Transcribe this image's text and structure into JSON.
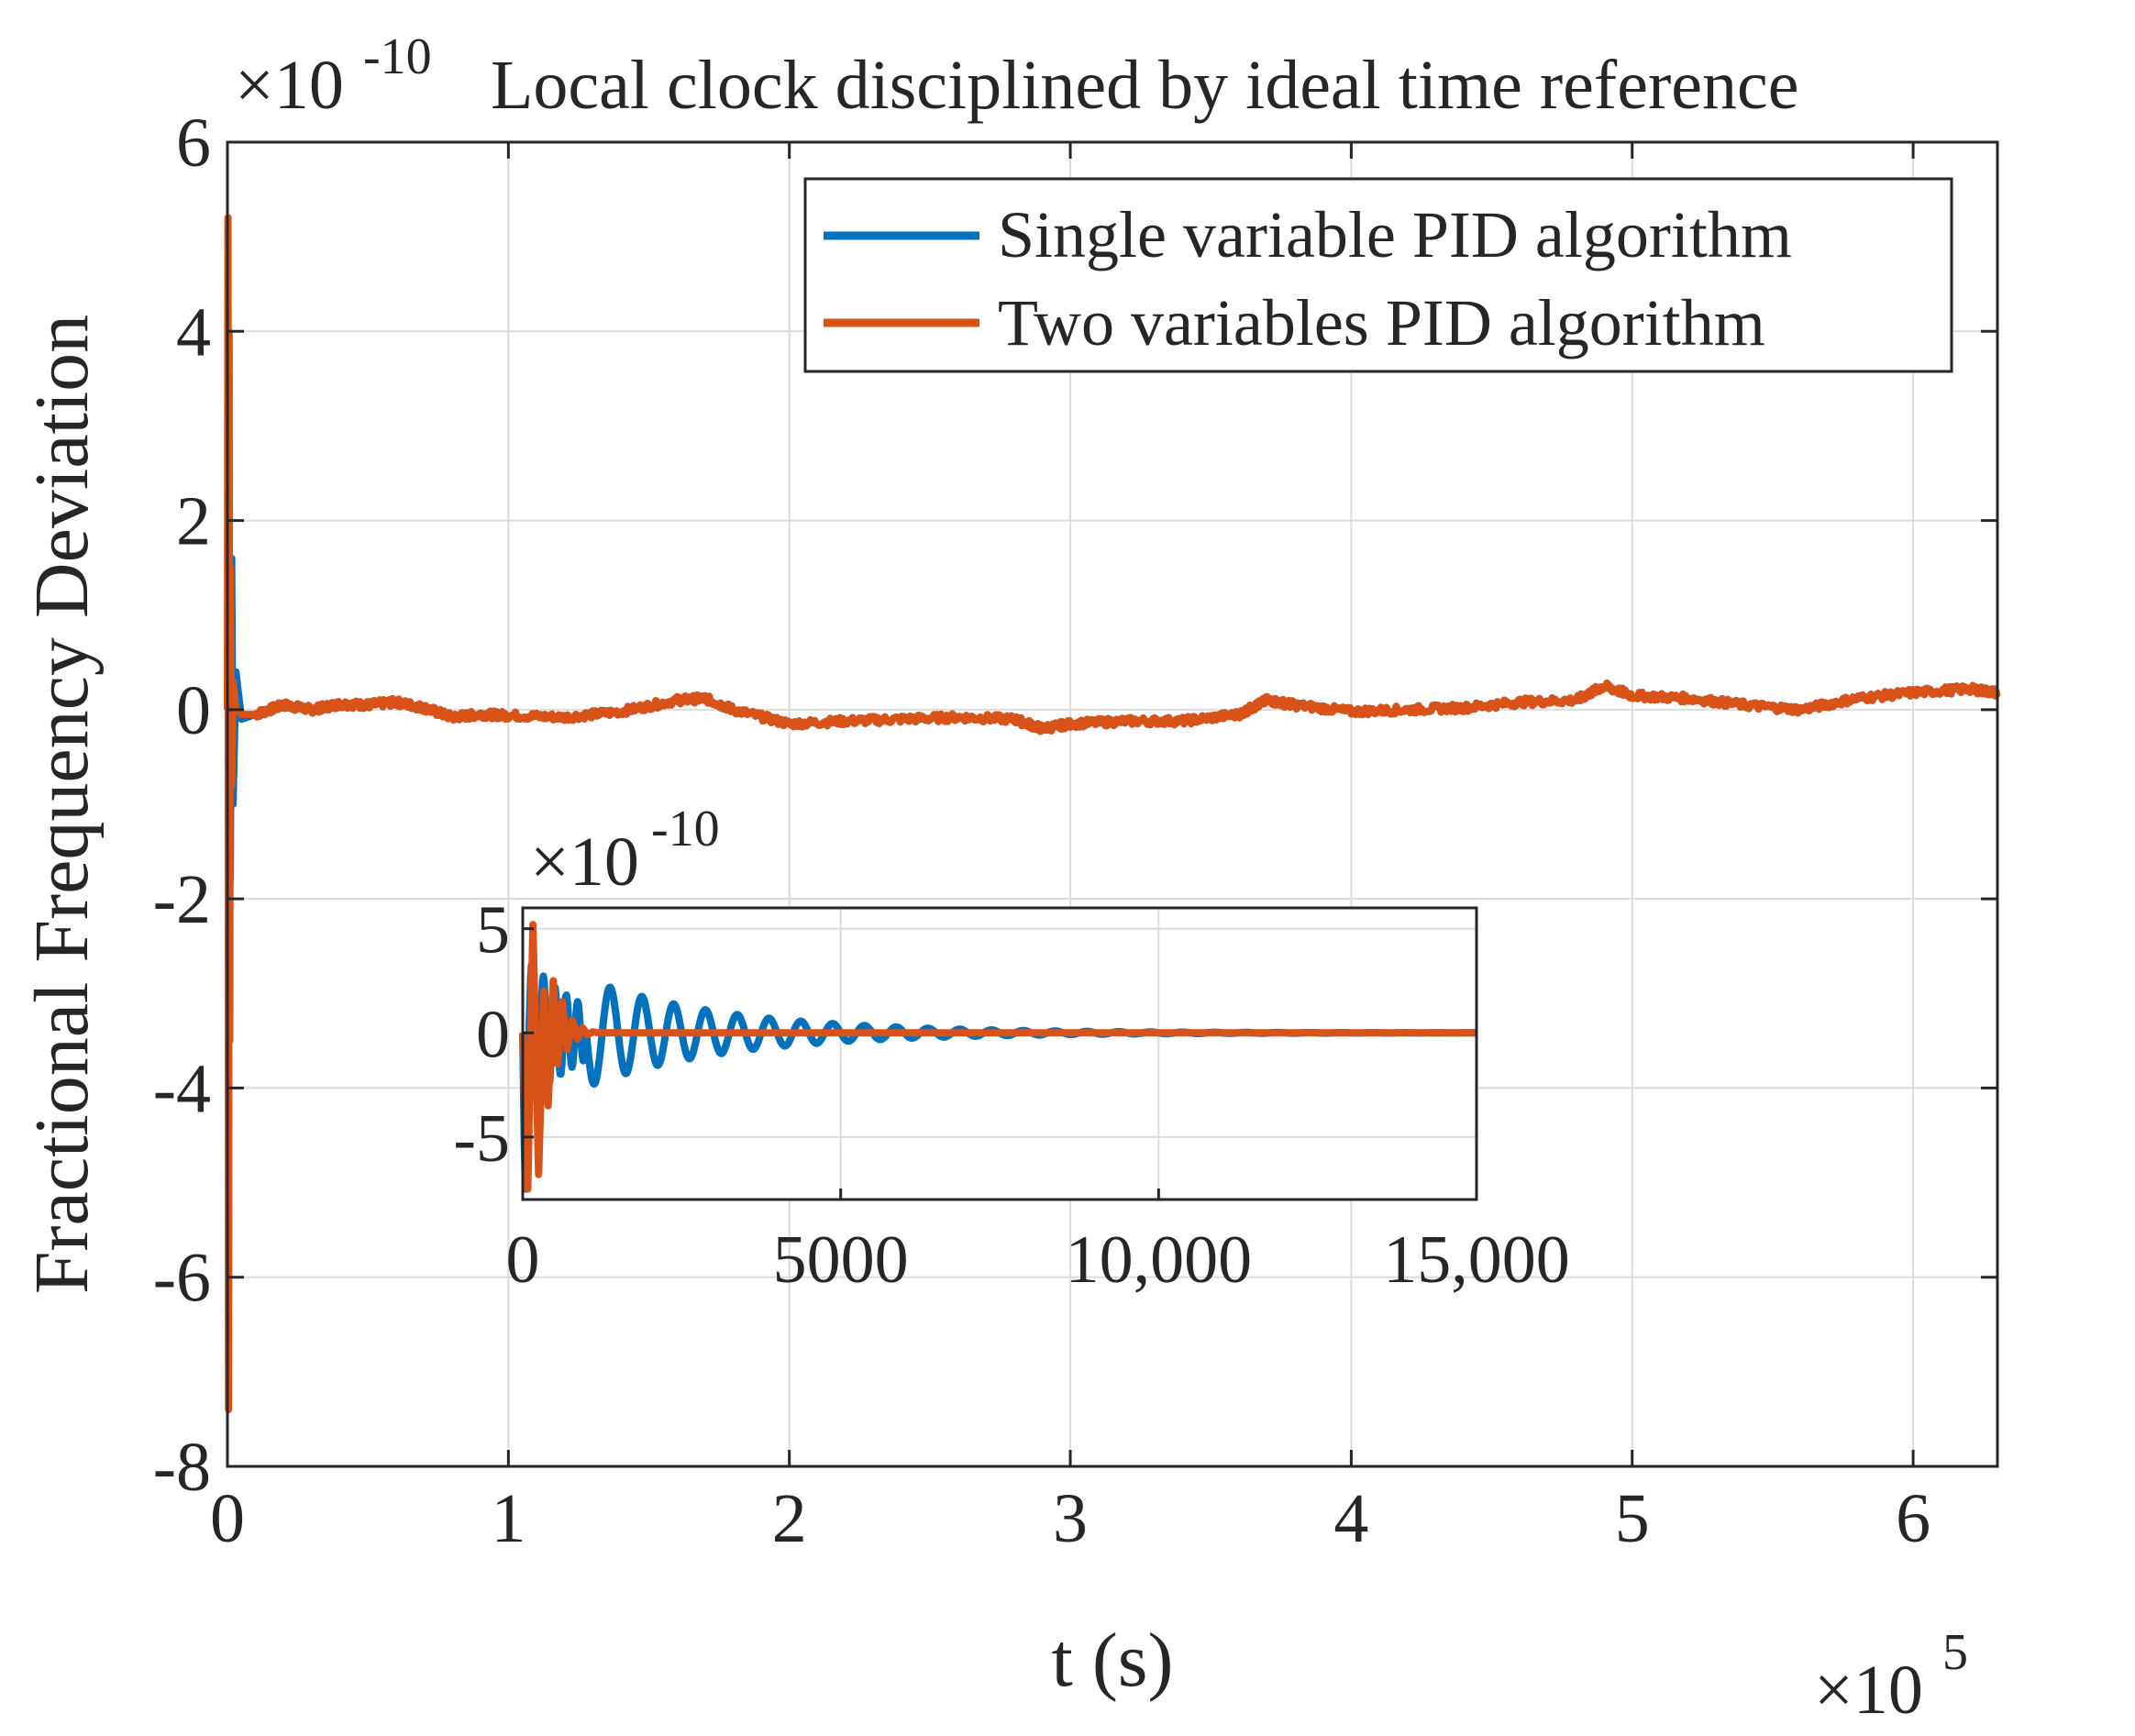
{
  "chart_data": {
    "type": "line",
    "title": "Local clock disciplined by ideal time reference",
    "xlabel": "t (s)",
    "ylabel": "Fractional Frequency Deviation",
    "y_exponent_label": "×10",
    "y_exponent_power": "-10",
    "x_exponent_label": "×10",
    "x_exponent_power": "5",
    "xlim": [
      0,
      6.3
    ],
    "ylim": [
      -8,
      6
    ],
    "xticks": [
      0,
      1,
      2,
      3,
      4,
      5,
      6
    ],
    "yticks": [
      -8,
      -6,
      -4,
      -2,
      0,
      2,
      4,
      6
    ],
    "xtick_labels": [
      "0",
      "1",
      "2",
      "3",
      "4",
      "5",
      "6"
    ],
    "ytick_labels": [
      "-8",
      "-6",
      "-4",
      "-2",
      "0",
      "2",
      "4",
      "6"
    ],
    "grid": true,
    "legend_position": "top-right",
    "series": [
      {
        "name": "Single variable PID algorithm",
        "color": "#0072BD",
        "x": [
          0,
          0.005,
          0.01,
          0.015,
          0.02,
          0.03,
          0.05,
          0.1,
          0.2,
          0.3,
          0.4,
          0.5,
          0.6,
          0.7,
          0.8,
          0.9,
          1.0,
          1.2,
          1.4,
          1.6,
          1.7,
          1.8,
          2.0,
          2.2,
          2.4,
          2.6,
          2.8,
          2.9,
          3.0,
          3.2,
          3.4,
          3.6,
          3.7,
          3.8,
          4.0,
          4.2,
          4.4,
          4.6,
          4.8,
          4.9,
          5.0,
          5.2,
          5.4,
          5.6,
          5.8,
          6.0,
          6.2,
          6.3
        ],
        "values": [
          0,
          2.5,
          -1.8,
          1.6,
          -1.0,
          0.4,
          -0.1,
          -0.05,
          0.05,
          0.0,
          0.06,
          0.05,
          0.08,
          0.02,
          -0.08,
          -0.05,
          -0.06,
          -0.08,
          -0.02,
          0.1,
          0.12,
          0.0,
          -0.15,
          -0.12,
          -0.1,
          -0.08,
          -0.1,
          -0.2,
          -0.15,
          -0.12,
          -0.12,
          -0.05,
          0.1,
          0.05,
          -0.02,
          0.0,
          0.02,
          0.08,
          0.1,
          0.25,
          0.15,
          0.12,
          0.05,
          0.0,
          0.12,
          0.18,
          0.22,
          0.18
        ]
      },
      {
        "name": "Two variables PID algorithm",
        "color": "#D95319",
        "x": [
          0,
          0.002,
          0.004,
          0.006,
          0.008,
          0.01,
          0.015,
          0.02,
          0.03,
          0.05,
          0.1,
          0.2,
          0.3,
          0.4,
          0.5,
          0.6,
          0.7,
          0.8,
          0.9,
          1.0,
          1.2,
          1.4,
          1.6,
          1.7,
          1.8,
          2.0,
          2.2,
          2.4,
          2.6,
          2.8,
          2.9,
          3.0,
          3.2,
          3.4,
          3.6,
          3.7,
          3.8,
          4.0,
          4.2,
          4.4,
          4.6,
          4.8,
          4.9,
          5.0,
          5.2,
          5.4,
          5.6,
          5.8,
          6.0,
          6.2,
          6.3
        ],
        "values": [
          0,
          5.2,
          -7.4,
          4.0,
          -3.5,
          1.5,
          -0.8,
          0.3,
          0.0,
          -0.05,
          -0.05,
          0.05,
          0.0,
          0.06,
          0.05,
          0.08,
          0.02,
          -0.08,
          -0.05,
          -0.06,
          -0.08,
          -0.02,
          0.1,
          0.12,
          0.0,
          -0.15,
          -0.12,
          -0.1,
          -0.08,
          -0.1,
          -0.2,
          -0.15,
          -0.12,
          -0.12,
          -0.05,
          0.1,
          0.05,
          -0.02,
          0.0,
          0.02,
          0.08,
          0.1,
          0.25,
          0.15,
          0.12,
          0.05,
          0.0,
          0.12,
          0.18,
          0.22,
          0.18
        ]
      }
    ],
    "inset": {
      "y_exponent_label": "×10",
      "y_exponent_power": "-10",
      "xlim": [
        0,
        15000
      ],
      "ylim": [
        -8,
        6
      ],
      "xticks": [
        0,
        5000,
        10000,
        15000
      ],
      "yticks": [
        -5,
        0,
        5
      ],
      "xtick_labels": [
        "0",
        "5000",
        "10,000",
        "15,000"
      ],
      "ytick_labels": [
        "-5",
        "0",
        "5"
      ],
      "grid": true,
      "series": [
        {
          "name": "Single variable PID algorithm",
          "color": "#0072BD",
          "decay_start": 1000,
          "amplitude": 2.6,
          "period": 500,
          "tau": 2200
        },
        {
          "name": "Two variables PID algorithm",
          "color": "#D95319",
          "x": [
            0,
            80,
            160,
            250,
            330,
            400,
            480,
            550,
            620,
            700,
            780,
            860,
            940,
            1020,
            1100,
            1200,
            1400,
            15000
          ],
          "values": [
            0,
            -7.5,
            5.2,
            -6.8,
            2.0,
            -3.5,
            2.5,
            -1.5,
            1.5,
            -0.8,
            0.6,
            -0.3,
            0.25,
            -0.1,
            0.05,
            0.0,
            0.0,
            0.0
          ]
        }
      ]
    }
  }
}
